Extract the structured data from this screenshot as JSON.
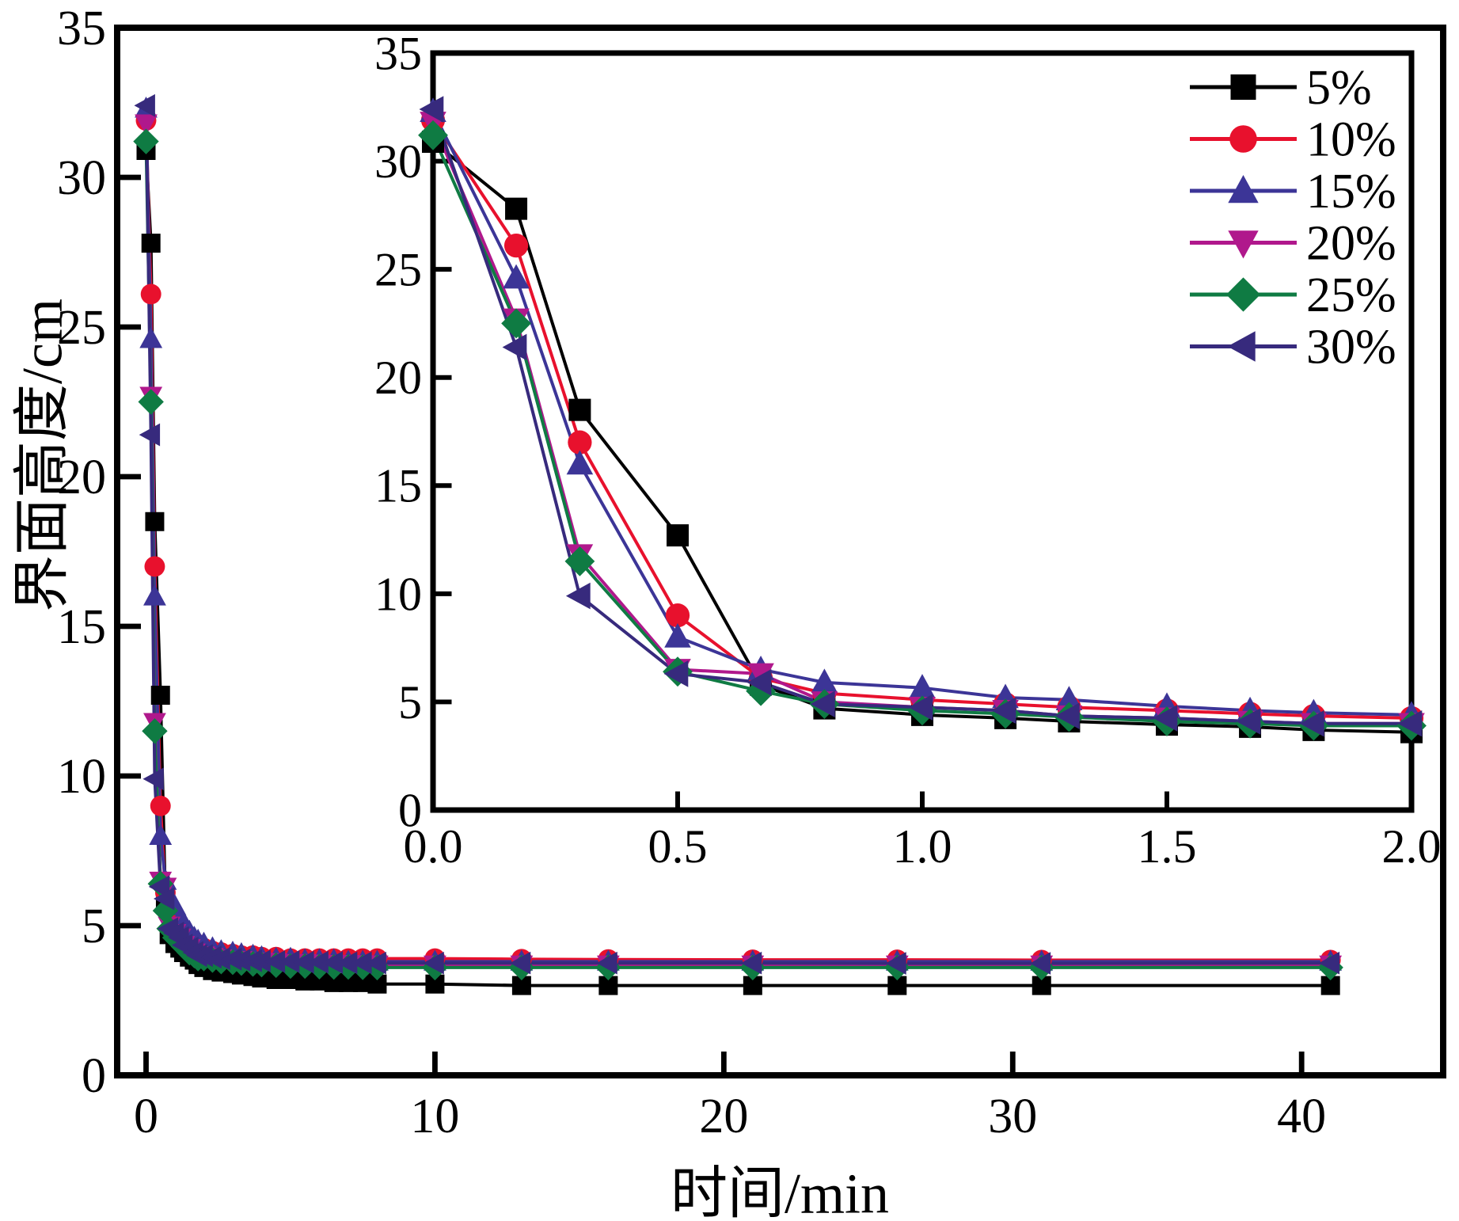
{
  "figure": {
    "background": "#ffffff",
    "axis_color": "#000000",
    "xlabel": "时间/min",
    "ylabel": "界面高度/cm"
  },
  "legend": {
    "position": "inset-top-right",
    "entries": [
      {
        "label": "5%",
        "color": "#000000",
        "marker": "square"
      },
      {
        "label": "10%",
        "color": "#e8112d",
        "marker": "circle"
      },
      {
        "label": "15%",
        "color": "#3c3597",
        "marker": "triangle-up"
      },
      {
        "label": "20%",
        "color": "#b0188c",
        "marker": "triangle-down"
      },
      {
        "label": "25%",
        "color": "#0f7b43",
        "marker": "diamond"
      },
      {
        "label": "30%",
        "color": "#372a7d",
        "marker": "triangle-left"
      }
    ]
  },
  "chart_data": [
    {
      "id": "main",
      "type": "line",
      "xlabel": "时间/min",
      "ylabel": "界面高度/cm",
      "xlim": [
        -1,
        44.9
      ],
      "ylim": [
        0,
        35
      ],
      "xticks": [
        0,
        10,
        20,
        30,
        40
      ],
      "yticks": [
        0,
        5,
        10,
        15,
        20,
        25,
        30,
        35
      ],
      "grid": false,
      "x": [
        0,
        0.17,
        0.3,
        0.5,
        0.67,
        0.8,
        1,
        1.17,
        1.3,
        1.5,
        1.67,
        1.8,
        2,
        2.3,
        2.6,
        3,
        3.3,
        3.7,
        4,
        4.5,
        5,
        5.5,
        6,
        6.5,
        7,
        7.5,
        8,
        10,
        13,
        16,
        21,
        26,
        31,
        41
      ],
      "series": [
        {
          "name": "5%",
          "color": "#000000",
          "marker": "square",
          "values": [
            30.9,
            27.8,
            18.5,
            12.7,
            5.8,
            4.7,
            4.4,
            4.25,
            4.1,
            3.95,
            3.85,
            3.7,
            3.6,
            3.5,
            3.45,
            3.4,
            3.35,
            3.3,
            3.25,
            3.2,
            3.2,
            3.15,
            3.15,
            3.1,
            3.1,
            3.1,
            3.05,
            3.05,
            3.0,
            3.0,
            3.0,
            3.0,
            3.0,
            3.0
          ]
        },
        {
          "name": "10%",
          "color": "#e8112d",
          "marker": "circle",
          "values": [
            31.9,
            26.1,
            17.0,
            9.0,
            6.1,
            5.4,
            5.1,
            4.9,
            4.75,
            4.6,
            4.45,
            4.35,
            4.25,
            4.15,
            4.1,
            4.05,
            4.0,
            4.0,
            3.95,
            3.95,
            3.9,
            3.9,
            3.9,
            3.9,
            3.9,
            3.9,
            3.9,
            3.9,
            3.88,
            3.87,
            3.86,
            3.86,
            3.85,
            3.85
          ]
        },
        {
          "name": "15%",
          "color": "#3c3597",
          "marker": "triangle-up",
          "values": [
            32.3,
            24.6,
            16.0,
            8.0,
            6.5,
            5.9,
            5.65,
            5.2,
            5.1,
            4.8,
            4.6,
            4.5,
            4.4,
            4.25,
            4.15,
            4.1,
            4.05,
            4.0,
            3.95,
            3.9,
            3.9,
            3.85,
            3.85,
            3.85,
            3.8,
            3.8,
            3.8,
            3.8,
            3.8,
            3.8,
            3.8,
            3.8,
            3.8,
            3.8
          ]
        },
        {
          "name": "20%",
          "color": "#b0188c",
          "marker": "triangle-down",
          "values": [
            31.8,
            22.7,
            11.8,
            6.5,
            6.3,
            5.0,
            4.75,
            4.6,
            4.35,
            4.25,
            4.1,
            4.0,
            4.0,
            3.95,
            3.9,
            3.85,
            3.85,
            3.8,
            3.8,
            3.78,
            3.75,
            3.75,
            3.73,
            3.72,
            3.72,
            3.71,
            3.7,
            3.7,
            3.7,
            3.7,
            3.7,
            3.7,
            3.7,
            3.7
          ]
        },
        {
          "name": "25%",
          "color": "#0f7b43",
          "marker": "diamond",
          "values": [
            31.2,
            22.5,
            11.5,
            6.4,
            5.5,
            4.9,
            4.6,
            4.45,
            4.3,
            4.1,
            4.0,
            3.9,
            3.9,
            3.85,
            3.8,
            3.78,
            3.75,
            3.72,
            3.7,
            3.68,
            3.65,
            3.65,
            3.63,
            3.62,
            3.62,
            3.61,
            3.6,
            3.6,
            3.6,
            3.6,
            3.6,
            3.6,
            3.6,
            3.6
          ]
        },
        {
          "name": "30%",
          "color": "#372a7d",
          "marker": "triangle-left",
          "values": [
            32.4,
            21.4,
            9.9,
            6.3,
            5.9,
            4.9,
            4.75,
            4.6,
            4.35,
            4.25,
            4.1,
            4.0,
            4.0,
            3.95,
            3.9,
            3.88,
            3.85,
            3.83,
            3.82,
            3.8,
            3.8,
            3.78,
            3.78,
            3.77,
            3.76,
            3.76,
            3.75,
            3.75,
            3.75,
            3.75,
            3.75,
            3.74,
            3.74,
            3.75
          ]
        }
      ]
    },
    {
      "id": "inset",
      "type": "line",
      "xlim": [
        0,
        2.0
      ],
      "ylim": [
        0,
        35
      ],
      "xticks": [
        "0.0",
        "0.5",
        "1.0",
        "1.5",
        "2.0"
      ],
      "yticks": [
        0,
        5,
        10,
        15,
        20,
        25,
        30,
        35
      ],
      "grid": false,
      "x": [
        0,
        0.17,
        0.3,
        0.5,
        0.67,
        0.8,
        1,
        1.17,
        1.3,
        1.5,
        1.67,
        1.8,
        2
      ],
      "series": [
        {
          "name": "5%",
          "color": "#000000",
          "marker": "square",
          "values": [
            30.9,
            27.8,
            18.5,
            12.7,
            5.8,
            4.7,
            4.4,
            4.25,
            4.1,
            3.95,
            3.85,
            3.7,
            3.6
          ]
        },
        {
          "name": "10%",
          "color": "#e8112d",
          "marker": "circle",
          "values": [
            31.9,
            26.1,
            17.0,
            9.0,
            6.1,
            5.4,
            5.1,
            4.9,
            4.75,
            4.6,
            4.45,
            4.35,
            4.25
          ]
        },
        {
          "name": "15%",
          "color": "#3c3597",
          "marker": "triangle-up",
          "values": [
            32.3,
            24.6,
            16.0,
            8.0,
            6.5,
            5.9,
            5.65,
            5.2,
            5.1,
            4.8,
            4.6,
            4.5,
            4.4
          ]
        },
        {
          "name": "20%",
          "color": "#b0188c",
          "marker": "triangle-down",
          "values": [
            31.8,
            22.7,
            11.8,
            6.5,
            6.3,
            5.0,
            4.75,
            4.6,
            4.35,
            4.25,
            4.1,
            4.0,
            4.0
          ]
        },
        {
          "name": "25%",
          "color": "#0f7b43",
          "marker": "diamond",
          "values": [
            31.2,
            22.5,
            11.5,
            6.4,
            5.5,
            4.9,
            4.6,
            4.45,
            4.3,
            4.1,
            4.0,
            3.9,
            3.9
          ]
        },
        {
          "name": "30%",
          "color": "#372a7d",
          "marker": "triangle-left",
          "values": [
            32.4,
            21.4,
            9.9,
            6.3,
            5.9,
            4.9,
            4.75,
            4.6,
            4.35,
            4.25,
            4.1,
            4.0,
            4.0
          ]
        }
      ]
    }
  ]
}
